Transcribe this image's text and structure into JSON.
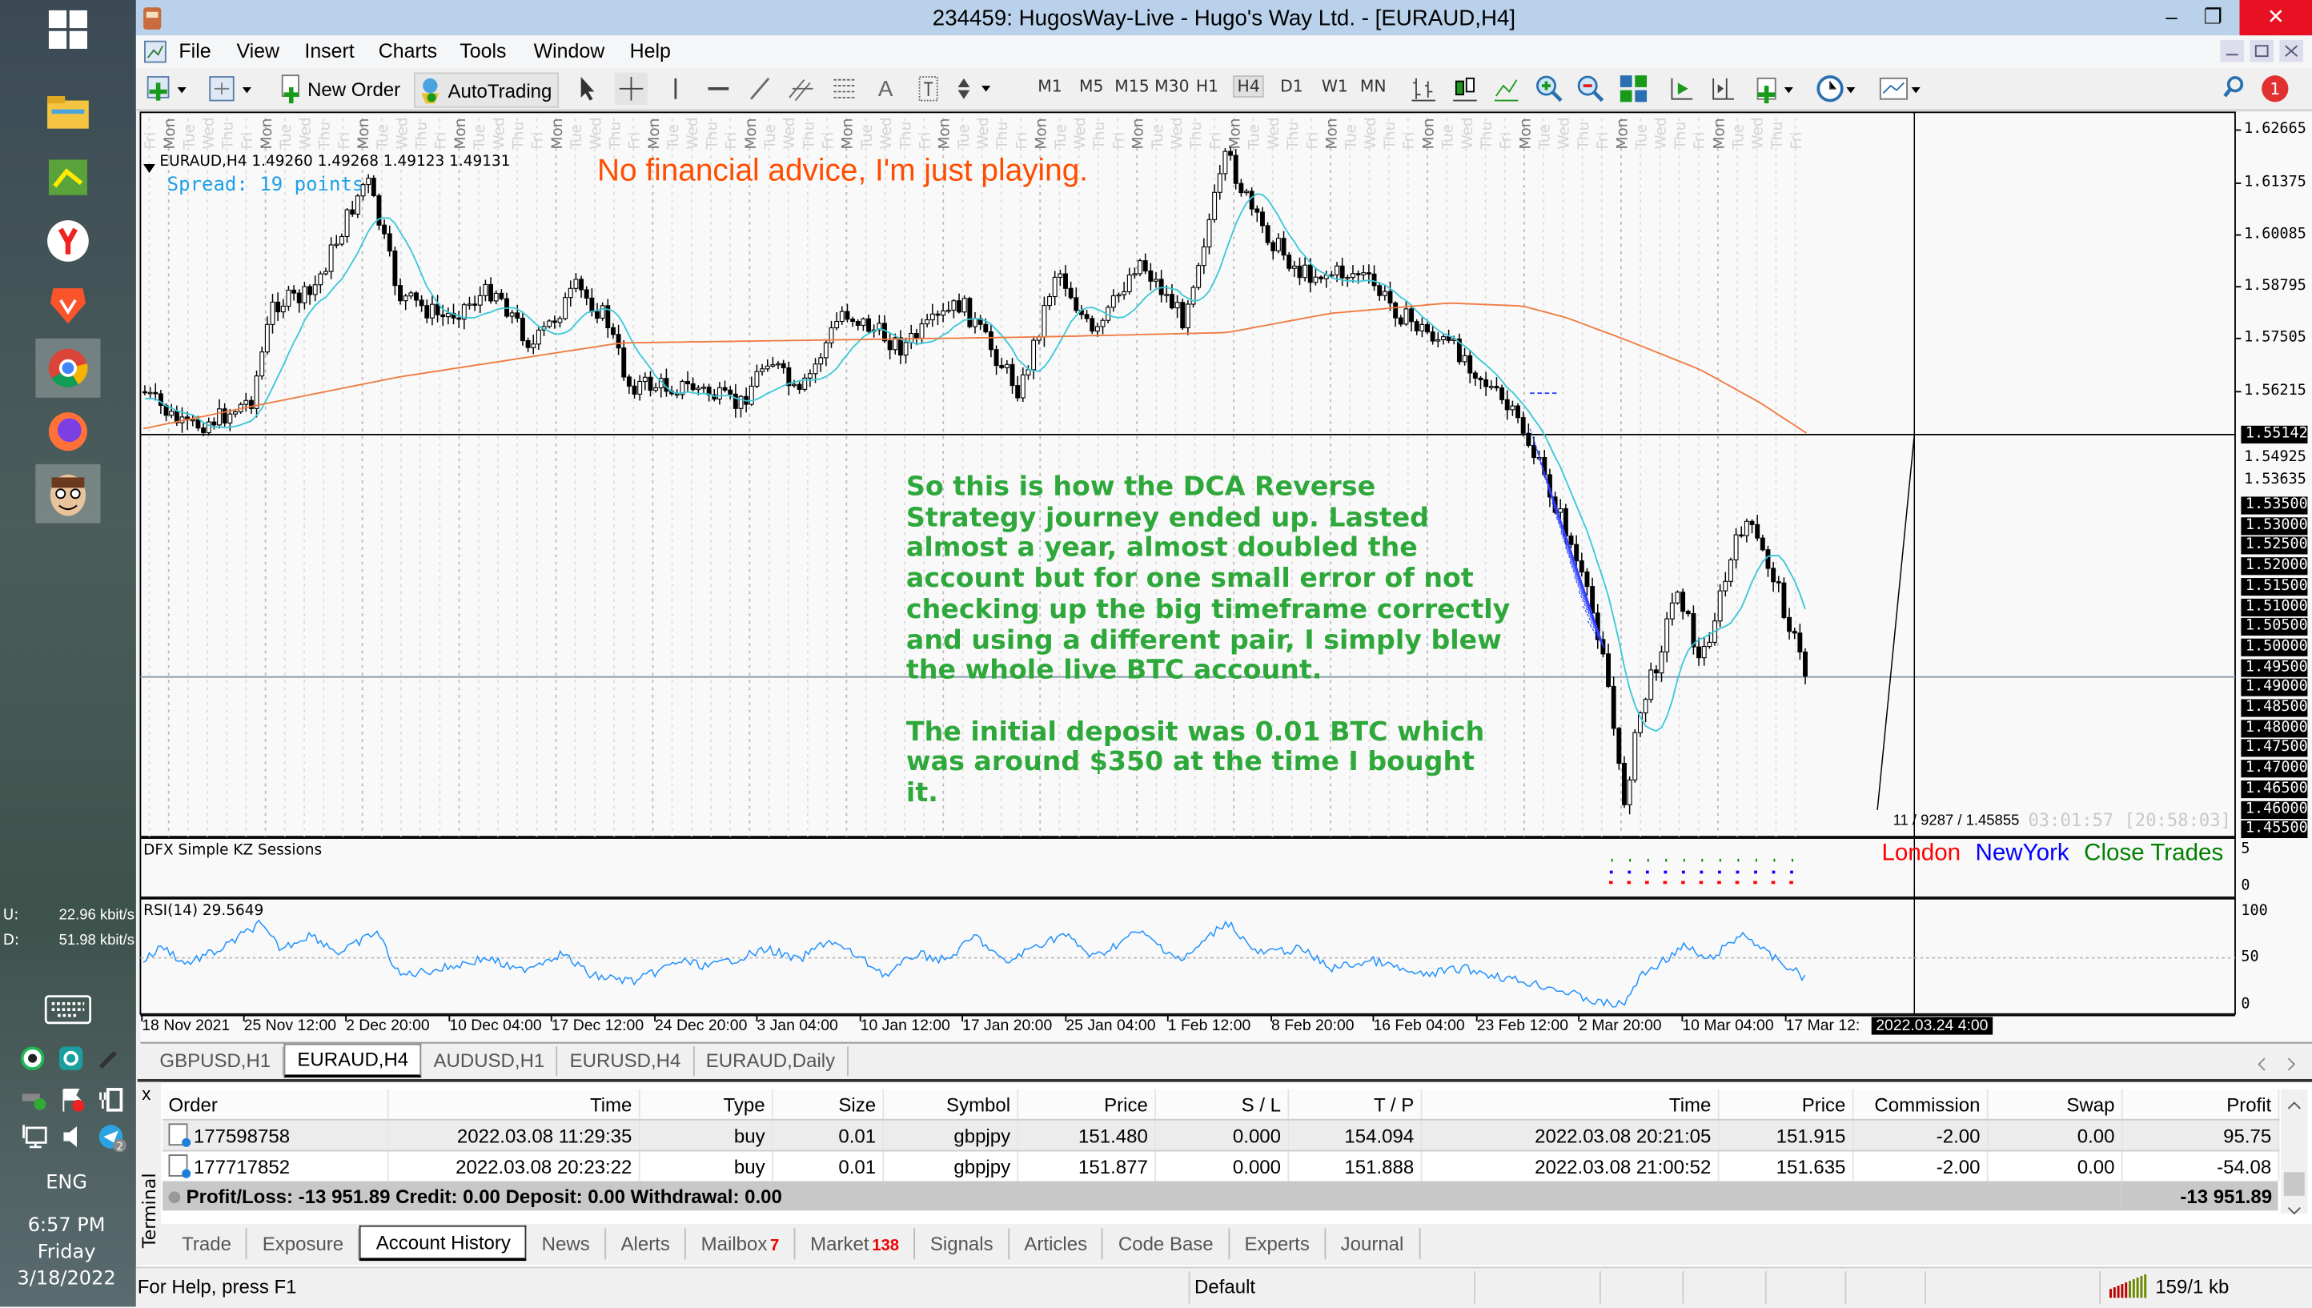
{
  "window": {
    "title": "234459: HugosWay-Live - Hugo's Way Ltd. - [EURAUD,H4]",
    "controls": {
      "minimize": "–",
      "restore": "❐",
      "close": "✕"
    }
  },
  "menu": [
    "File",
    "View",
    "Insert",
    "Charts",
    "Tools",
    "Window",
    "Help"
  ],
  "toolbar": {
    "new_order": "New Order",
    "autotrading": "AutoTrading",
    "text_tool": "A",
    "timeframes": [
      "M1",
      "M5",
      "M15",
      "M30",
      "H1",
      "H4",
      "D1",
      "W1",
      "MN"
    ],
    "active_timeframe": "H4",
    "alerts_badge": "1"
  },
  "chart": {
    "header": "EURAUD,H4  1.49260 1.49268 1.49123 1.49131",
    "spread": "Spread: 19 points",
    "disclaimer": "No financial advice, I'm just playing.",
    "note": "So this is how the DCA Reverse\nStrategy journey ended up. Lasted\nalmost a year, almost doubled the\naccount but for one small error of not\nchecking up the big timeframe correctly\nand using a different pair, I simply blew\nthe whole live BTC account.\n\nThe initial deposit was 0.01 BTC which\nwas around $350 at the time I bought\nit.",
    "day_labels": [
      "Mon",
      "Tue",
      "Wed",
      "Thu",
      "Fri"
    ],
    "price_labels": [
      "1.62665",
      "1.61375",
      "1.60085",
      "1.58795",
      "1.57505",
      "1.56215"
    ],
    "current_price": "1.55142",
    "hidden_price": "1.54925",
    "partial_price": "1.53635",
    "level_boxes": [
      "1.53500",
      "1.53000",
      "1.52500",
      "1.52000",
      "1.51500",
      "1.51000",
      "1.50500",
      "1.50000",
      "1.49500",
      "1.49000",
      "1.48500",
      "1.48000",
      "1.47500",
      "1.47000",
      "1.46500",
      "1.46000",
      "1.45500"
    ],
    "crosshair_readout": "11 / 9287 / 1.45855",
    "timer": "03:01:57 [20:58:03]",
    "colors": {
      "note": "#2ea83a",
      "disclaimer": "#ff4d00",
      "spread": "#1ea0e6",
      "ma_fast": "#3cc8d8",
      "ma_slow": "#f07a40",
      "rsi": "#1e90ff"
    }
  },
  "sessions_pane": {
    "title": "DFX Simple KZ Sessions",
    "legend": [
      {
        "label": "Close Trades",
        "color": "#008000"
      },
      {
        "label": "NewYork",
        "color": "#0000ff"
      },
      {
        "label": "London",
        "color": "#ff0000"
      }
    ],
    "axis": [
      "5",
      "0"
    ]
  },
  "rsi_pane": {
    "title": "RSI(14) 29.5649",
    "axis": [
      "100",
      "50",
      "0"
    ]
  },
  "date_axis": [
    "18 Nov 2021",
    "25 Nov 12:00",
    "2 Dec 20:00",
    "10 Dec 04:00",
    "17 Dec 12:00",
    "24 Dec 20:00",
    "3 Jan 04:00",
    "10 Jan 12:00",
    "17 Jan 20:00",
    "25 Jan 04:00",
    "1 Feb 12:00",
    "8 Feb 20:00",
    "16 Feb 04:00",
    "23 Feb 12:00",
    "2 Mar 20:00",
    "10 Mar 04:00",
    "17 Mar 12:"
  ],
  "date_cursor": "2022.03.24 4:00",
  "chart_tabs": [
    {
      "label": "GBPUSD,H1",
      "active": false
    },
    {
      "label": "EURAUD,H4",
      "active": true
    },
    {
      "label": "AUDUSD,H1",
      "active": false
    },
    {
      "label": "EURUSD,H4",
      "active": false
    },
    {
      "label": "EURAUD,Daily",
      "active": false
    }
  ],
  "terminal": {
    "side_label": "Terminal",
    "close": "x",
    "columns": [
      "Order",
      "Time",
      "Type",
      "Size",
      "Symbol",
      "Price",
      "S / L",
      "T / P",
      "Time",
      "Price",
      "Commission",
      "Swap",
      "Profit"
    ],
    "rows": [
      [
        "177598758",
        "2022.03.08 11:29:35",
        "buy",
        "0.01",
        "gbpjpy",
        "151.480",
        "0.000",
        "154.094",
        "2022.03.08 20:21:05",
        "151.915",
        "-2.00",
        "0.00",
        "95.75"
      ],
      [
        "177717852",
        "2022.03.08 20:23:22",
        "buy",
        "0.01",
        "gbpjpy",
        "151.877",
        "0.000",
        "151.888",
        "2022.03.08 21:00:52",
        "151.635",
        "-2.00",
        "0.00",
        "-54.08"
      ]
    ],
    "summary": "Profit/Loss: -13 951.89  Credit: 0.00  Deposit: 0.00  Withdrawal: 0.00",
    "summary_total": "-13 951.89",
    "tabs": [
      {
        "label": "Trade"
      },
      {
        "label": "Exposure"
      },
      {
        "label": "Account History",
        "active": true
      },
      {
        "label": "News"
      },
      {
        "label": "Alerts"
      },
      {
        "label": "Mailbox",
        "badge": "7"
      },
      {
        "label": "Market",
        "badge": "138"
      },
      {
        "label": "Signals"
      },
      {
        "label": "Articles"
      },
      {
        "label": "Code Base"
      },
      {
        "label": "Experts"
      },
      {
        "label": "Journal"
      }
    ]
  },
  "statusbar": {
    "help": "For Help, press F1",
    "profile": "Default",
    "connection": "159/1 kb"
  },
  "taskbar": {
    "upload": "U:",
    "upload_rate": "22.96 kbit/s",
    "download": "D:",
    "download_rate": "51.98 kbit/s",
    "language": "ENG",
    "time": "6:57 PM",
    "day": "Friday",
    "date": "3/18/2022",
    "telegram_badge": "2",
    "pinned": [
      "windows-start-icon",
      "file-explorer-icon",
      "app-icon",
      "yandex-browser-icon",
      "brave-browser-icon",
      "chrome-icon",
      "firefox-icon",
      "avatar-app-icon"
    ]
  }
}
